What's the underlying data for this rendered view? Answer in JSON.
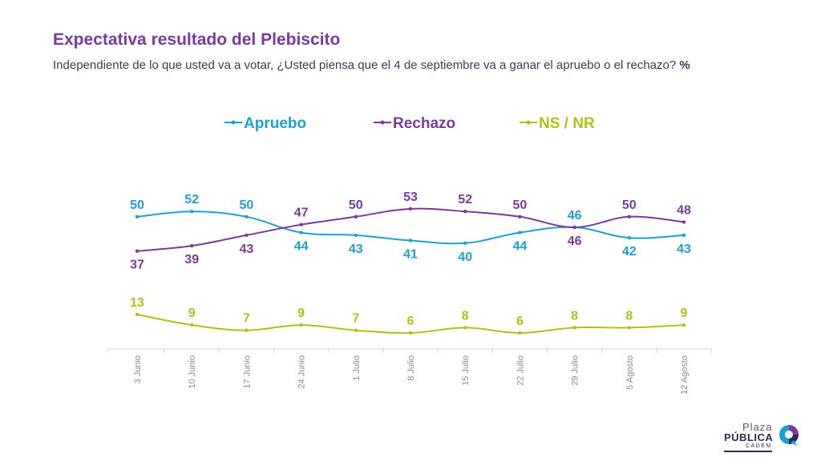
{
  "header": {
    "title": "Expectativa resultado del Plebiscito",
    "subtitle": "Independiente de lo que usted va a votar, ¿Usted piensa que el 4 de septiembre va a ganar el apruebo o el rechazo?",
    "subtitle_unit": "%"
  },
  "logo": {
    "line1": "Plaza",
    "line2": "PÚBLICA",
    "line3": "CADEM",
    "icon": "cadem-swirl-icon"
  },
  "colors": {
    "apruebo": "#1ea0d2",
    "rechazo": "#7b3aa0",
    "nsnr": "#b4be14",
    "axis": "#d0d0d0",
    "tick": "#8a8a8a"
  },
  "chart_data": {
    "type": "line",
    "categories": [
      "3 Junio",
      "10 Junio",
      "17 Junio",
      "24 Junio",
      "1 Julio",
      "8 Julio",
      "15 Julio",
      "22 Julio",
      "29 Julio",
      "5 Agosto",
      "12 Agosto"
    ],
    "series": [
      {
        "name": "Apruebo",
        "color": "#1ea0d2",
        "values": [
          50,
          52,
          50,
          44,
          43,
          41,
          40,
          44,
          46,
          42,
          43
        ]
      },
      {
        "name": "Rechazo",
        "color": "#7b3aa0",
        "values": [
          37,
          39,
          43,
          47,
          50,
          53,
          52,
          50,
          46,
          50,
          48
        ]
      },
      {
        "name": "NS / NR",
        "color": "#b4be14",
        "values": [
          13,
          9,
          7,
          9,
          7,
          6,
          8,
          6,
          8,
          8,
          9
        ]
      }
    ],
    "legend_position": "top",
    "grid": false
  }
}
